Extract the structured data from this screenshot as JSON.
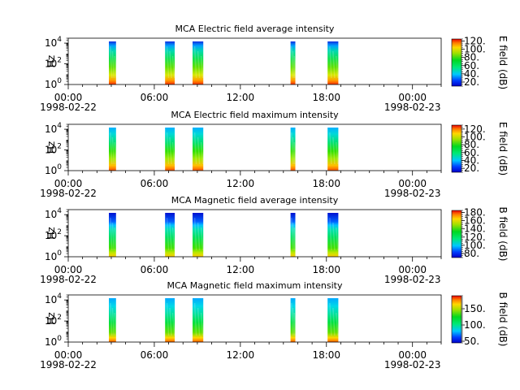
{
  "chart_data": [
    {
      "type": "heatmap",
      "title": "MCA  Electric field average intensity",
      "ylabel": "Hz",
      "y_scale": "log",
      "ylim": [
        1,
        30000
      ],
      "y_ticks": [
        "10^0",
        "10^2",
        "10^4"
      ],
      "x_range": [
        "1998-02-22T00:00",
        "1998-02-23T02:00"
      ],
      "x_ticks": [
        "00:00",
        "06:00",
        "12:00",
        "18:00",
        "00:00"
      ],
      "x_date_labels": [
        "1998-02-22",
        "1998-02-23"
      ],
      "colorbar": {
        "label": "E field (dB)",
        "range": [
          10,
          125
        ],
        "ticks": [
          "20.",
          "40.",
          "60.",
          "80.",
          "100.",
          "120."
        ]
      },
      "data_intervals": [
        [
          "02:50",
          "03:20"
        ],
        [
          "06:45",
          "07:25"
        ],
        [
          "08:40",
          "09:25"
        ],
        [
          "15:30",
          "15:50"
        ],
        [
          "18:05",
          "18:50"
        ]
      ],
      "intensity_profile": "high (red/yellow) at low frequencies, decreasing to blue at highest frequencies"
    },
    {
      "type": "heatmap",
      "title": "MCA  Electric field maximum intensity",
      "ylabel": "Hz",
      "y_scale": "log",
      "ylim": [
        1,
        30000
      ],
      "y_ticks": [
        "10^0",
        "10^2",
        "10^4"
      ],
      "x_range": [
        "1998-02-22T00:00",
        "1998-02-23T02:00"
      ],
      "x_ticks": [
        "00:00",
        "06:00",
        "12:00",
        "18:00",
        "00:00"
      ],
      "x_date_labels": [
        "1998-02-22",
        "1998-02-23"
      ],
      "colorbar": {
        "label": "E field (dB)",
        "range": [
          10,
          130
        ],
        "ticks": [
          "20.",
          "40.",
          "60.",
          "80.",
          "100.",
          "120."
        ]
      },
      "data_intervals": [
        [
          "02:50",
          "03:20"
        ],
        [
          "06:45",
          "07:25"
        ],
        [
          "08:40",
          "09:25"
        ],
        [
          "15:30",
          "15:50"
        ],
        [
          "18:05",
          "18:50"
        ]
      ],
      "intensity_profile": "high (red/yellow) at low frequencies, decreasing to blue at highest frequencies"
    },
    {
      "type": "heatmap",
      "title": "MCA  Magnetic field average intensity",
      "ylabel": "Hz",
      "y_scale": "log",
      "ylim": [
        1,
        30000
      ],
      "y_ticks": [
        "10^0",
        "10^2",
        "10^4"
      ],
      "x_range": [
        "1998-02-22T00:00",
        "1998-02-23T02:00"
      ],
      "x_ticks": [
        "00:00",
        "06:00",
        "12:00",
        "18:00",
        "00:00"
      ],
      "x_date_labels": [
        "1998-02-22",
        "1998-02-23"
      ],
      "colorbar": {
        "label": "B field (dB)",
        "range": [
          70,
          185
        ],
        "ticks": [
          "80.",
          "100.",
          "120.",
          "140.",
          "160.",
          "180."
        ]
      },
      "data_intervals": [
        [
          "02:50",
          "03:20"
        ],
        [
          "06:45",
          "07:25"
        ],
        [
          "08:40",
          "09:25"
        ],
        [
          "15:30",
          "15:50"
        ],
        [
          "18:05",
          "18:50"
        ]
      ],
      "intensity_profile": "mostly green, yellow near lowest frequencies, blue band above about 10^3 Hz"
    },
    {
      "type": "heatmap",
      "title": "MCA  Magnetic field maximum intensity",
      "ylabel": "Hz",
      "y_scale": "log",
      "ylim": [
        1,
        30000
      ],
      "y_ticks": [
        "10^0",
        "10^2",
        "10^4"
      ],
      "x_range": [
        "1998-02-22T00:00",
        "1998-02-23T02:00"
      ],
      "x_ticks": [
        "00:00",
        "06:00",
        "12:00",
        "18:00",
        "00:00"
      ],
      "x_date_labels": [
        "1998-02-22",
        "1998-02-23"
      ],
      "colorbar": {
        "label": "B field (dB)",
        "range": [
          45,
          190
        ],
        "ticks": [
          "50.",
          "100.",
          "150."
        ]
      },
      "data_intervals": [
        [
          "02:50",
          "03:20"
        ],
        [
          "06:45",
          "07:25"
        ],
        [
          "08:40",
          "09:25"
        ],
        [
          "15:30",
          "15:50"
        ],
        [
          "18:05",
          "18:50"
        ]
      ],
      "intensity_profile": "green/cyan body, yellow-red at lowest frequencies, cyan near top"
    }
  ]
}
